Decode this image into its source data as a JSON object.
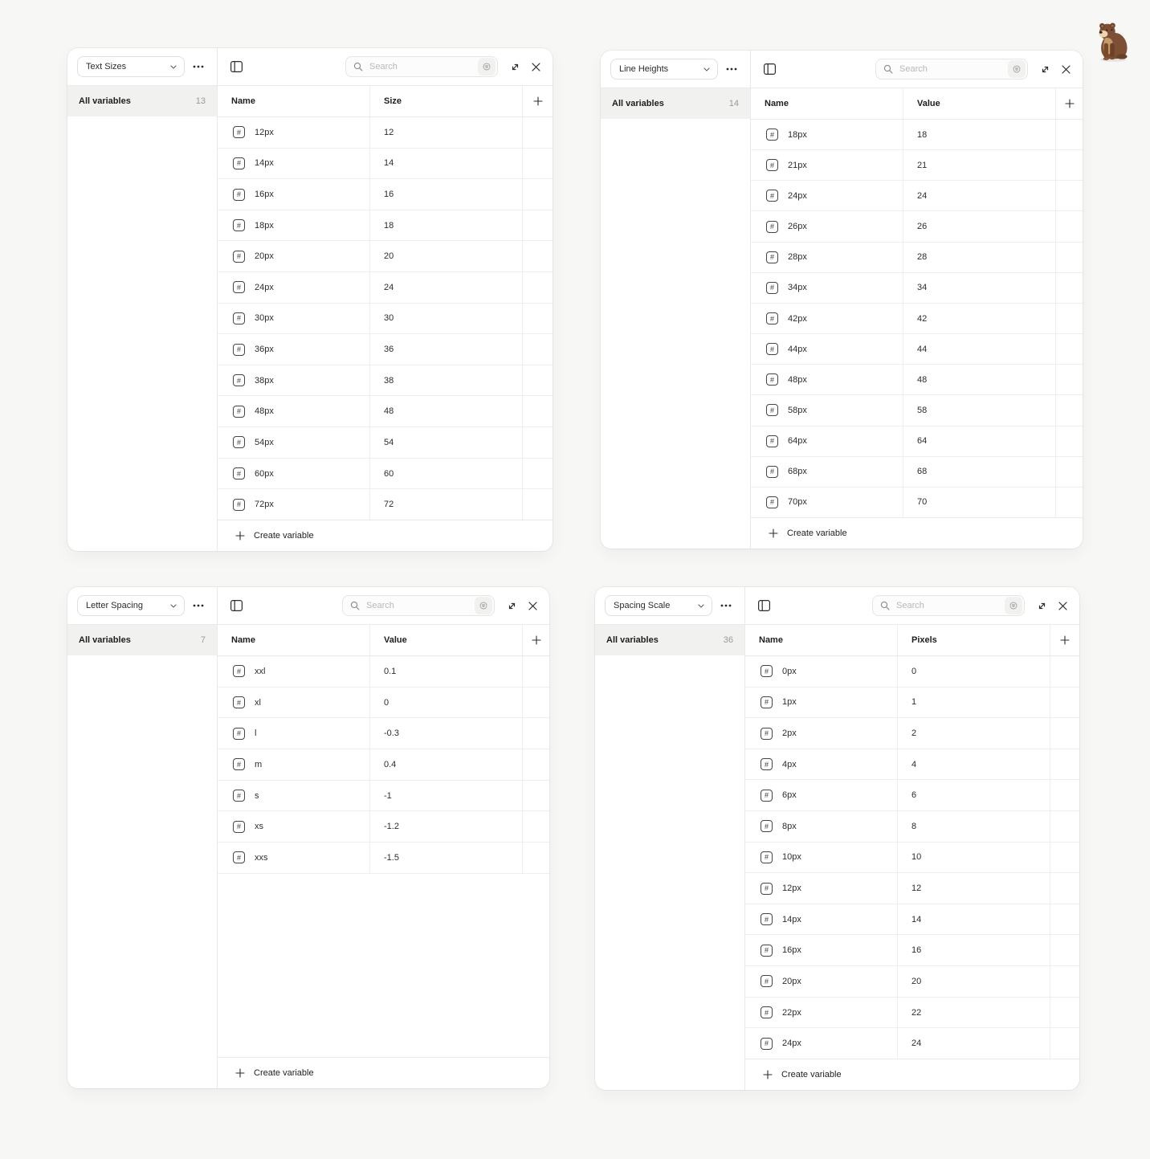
{
  "page": {
    "background_color": "#f7f7f6"
  },
  "colors": {
    "panel_bg": "#ffffff",
    "border": "#e9e9e8",
    "row_border": "#efefee",
    "selected_item_bg": "#f1f1f0",
    "text_primary": "#1e1e1e",
    "text_secondary": "#2c2c2c",
    "muted": "#9a9a9a",
    "placeholder": "#b8b8b6"
  },
  "search": {
    "placeholder": "Search"
  },
  "icons": {
    "variable_type_glyph": "#"
  },
  "panels": [
    {
      "collection": "Text Sizes",
      "sidebar": {
        "label": "All variables",
        "count": "13"
      },
      "columns": {
        "name": "Name",
        "value": "Size"
      },
      "rows": [
        {
          "name": "12px",
          "value": "12"
        },
        {
          "name": "14px",
          "value": "14"
        },
        {
          "name": "16px",
          "value": "16"
        },
        {
          "name": "18px",
          "value": "18"
        },
        {
          "name": "20px",
          "value": "20"
        },
        {
          "name": "24px",
          "value": "24"
        },
        {
          "name": "30px",
          "value": "30"
        },
        {
          "name": "36px",
          "value": "36"
        },
        {
          "name": "38px",
          "value": "38"
        },
        {
          "name": "48px",
          "value": "48"
        },
        {
          "name": "54px",
          "value": "54"
        },
        {
          "name": "60px",
          "value": "60"
        },
        {
          "name": "72px",
          "value": "72"
        }
      ],
      "footer": {
        "create_label": "Create variable"
      }
    },
    {
      "collection": "Line Heights",
      "sidebar": {
        "label": "All variables",
        "count": "14"
      },
      "columns": {
        "name": "Name",
        "value": "Value"
      },
      "rows": [
        {
          "name": "18px",
          "value": "18"
        },
        {
          "name": "21px",
          "value": "21"
        },
        {
          "name": "24px",
          "value": "24"
        },
        {
          "name": "26px",
          "value": "26"
        },
        {
          "name": "28px",
          "value": "28"
        },
        {
          "name": "34px",
          "value": "34"
        },
        {
          "name": "42px",
          "value": "42"
        },
        {
          "name": "44px",
          "value": "44"
        },
        {
          "name": "48px",
          "value": "48"
        },
        {
          "name": "58px",
          "value": "58"
        },
        {
          "name": "64px",
          "value": "64"
        },
        {
          "name": "68px",
          "value": "68"
        },
        {
          "name": "70px",
          "value": "70"
        }
      ],
      "footer": {
        "create_label": "Create variable"
      }
    },
    {
      "collection": "Letter Spacing",
      "sidebar": {
        "label": "All variables",
        "count": "7"
      },
      "columns": {
        "name": "Name",
        "value": "Value"
      },
      "rows": [
        {
          "name": "xxl",
          "value": "0.1"
        },
        {
          "name": "xl",
          "value": "0"
        },
        {
          "name": "l",
          "value": "-0.3"
        },
        {
          "name": "m",
          "value": "0.4"
        },
        {
          "name": "s",
          "value": "-1"
        },
        {
          "name": "xs",
          "value": "-1.2"
        },
        {
          "name": "xxs",
          "value": "-1.5"
        }
      ],
      "footer": {
        "create_label": "Create variable"
      }
    },
    {
      "collection": "Spacing Scale",
      "sidebar": {
        "label": "All variables",
        "count": "36"
      },
      "columns": {
        "name": "Name",
        "value": "Pixels"
      },
      "rows": [
        {
          "name": "0px",
          "value": "0"
        },
        {
          "name": "1px",
          "value": "1"
        },
        {
          "name": "2px",
          "value": "2"
        },
        {
          "name": "4px",
          "value": "4"
        },
        {
          "name": "6px",
          "value": "6"
        },
        {
          "name": "8px",
          "value": "8"
        },
        {
          "name": "10px",
          "value": "10"
        },
        {
          "name": "12px",
          "value": "12"
        },
        {
          "name": "14px",
          "value": "14"
        },
        {
          "name": "16px",
          "value": "16"
        },
        {
          "name": "20px",
          "value": "20"
        },
        {
          "name": "22px",
          "value": "22"
        },
        {
          "name": "24px",
          "value": "24"
        }
      ],
      "footer": {
        "create_label": "Create variable"
      }
    }
  ],
  "decoration": {
    "bear_illustration": "sitting brown bear"
  }
}
